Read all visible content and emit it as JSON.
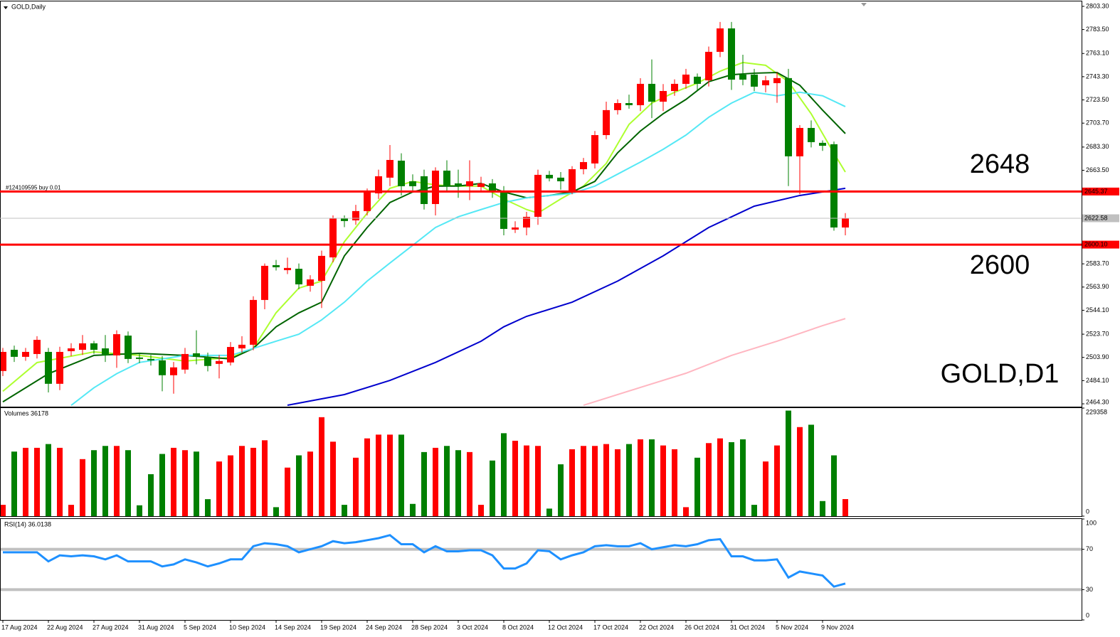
{
  "chart_data": [
    {
      "type": "candlestick",
      "title": "GOLD,Daily",
      "up_color": "#ff0000",
      "down_color": "#008000",
      "open": [
        2492.3,
        2510.4,
        2504.4,
        2506.8,
        2508.6,
        2481.4,
        2509.2,
        2510.4,
        2515.9,
        2511.6,
        2505.6,
        2522.5,
        2503.8,
        2502.6,
        2501.4,
        2488.7,
        2493.5,
        2507.4,
        2504.4,
        2498.4,
        2499.6,
        2511.6,
        2514.7,
        2552.9,
        2582.6,
        2578.3,
        2579.5,
        2565.0,
        2569.2,
        2589.2,
        2622.6,
        2620.8,
        2628.7,
        2643.8,
        2657.2,
        2671.7,
        2654.1,
        2658.4,
        2634.7,
        2663.2,
        2652.3,
        2649.9,
        2649.3,
        2652.3,
        2646.2,
        2612.9,
        2614.7,
        2623.8,
        2659.6,
        2657.2,
        2646.2,
        2664.4,
        2669.3,
        2693.5,
        2714.8,
        2720.8,
        2719.0,
        2737.2,
        2722.0,
        2731.1,
        2737.2,
        2743.3,
        2740.2,
        2764.5,
        2784.5,
        2745.1,
        2745.1,
        2736.0,
        2737.8,
        2742.1,
        2675.4,
        2699.6,
        2686.9,
        2685.7,
        2614.7
      ],
      "high": [
        2512,
        2514,
        2512,
        2522,
        2512,
        2513,
        2516,
        2523,
        2518,
        2523,
        2527,
        2526,
        2507,
        2506,
        2505,
        2500,
        2512,
        2527,
        2508,
        2506,
        2517,
        2522,
        2556,
        2584,
        2587,
        2589,
        2584,
        2574,
        2595,
        2625,
        2625,
        2634,
        2648,
        2664,
        2685,
        2678,
        2660,
        2664,
        2666,
        2672,
        2664,
        2672,
        2658,
        2656,
        2650,
        2620,
        2628,
        2664,
        2663,
        2662,
        2667,
        2674,
        2697,
        2722,
        2724,
        2728,
        2742,
        2758,
        2737,
        2741,
        2750,
        2746,
        2769,
        2790,
        2790,
        2762,
        2750,
        2744,
        2747,
        2750,
        2702,
        2706,
        2689,
        2688,
        2627
      ],
      "low": [
        2488,
        2500,
        2501,
        2503,
        2474,
        2476,
        2505,
        2506,
        2507,
        2500,
        2495,
        2499,
        2499,
        2497,
        2475,
        2473,
        2490,
        2498,
        2492,
        2486,
        2497,
        2508,
        2510,
        2545,
        2578,
        2575,
        2562,
        2560,
        2546,
        2585,
        2615,
        2617,
        2625,
        2639,
        2650,
        2642,
        2646,
        2630,
        2625,
        2645,
        2640,
        2638,
        2645,
        2640,
        2608,
        2610,
        2608,
        2617,
        2654,
        2647,
        2643,
        2660,
        2665,
        2690,
        2711,
        2716,
        2714,
        2708,
        2714,
        2727,
        2733,
        2731,
        2735,
        2760,
        2732,
        2736,
        2731,
        2730,
        2721,
        2650,
        2643,
        2683,
        2680,
        2612,
        2608
      ],
      "close": [
        2508.6,
        2504.4,
        2508.6,
        2518.9,
        2481.4,
        2508.6,
        2511.6,
        2515.9,
        2510.4,
        2505.6,
        2523.7,
        2502.6,
        2502.6,
        2501.4,
        2488.7,
        2495.4,
        2506.8,
        2504.4,
        2496.6,
        2500.8,
        2512.8,
        2514.7,
        2552.9,
        2582.0,
        2580.8,
        2580.2,
        2566.2,
        2570.4,
        2590.5,
        2622.6,
        2620.2,
        2628.7,
        2645.0,
        2658.4,
        2672.3,
        2649.9,
        2649.9,
        2634.7,
        2663.2,
        2649.9,
        2649.9,
        2654.1,
        2652.3,
        2645.0,
        2613.5,
        2614.7,
        2623.8,
        2659.6,
        2656.6,
        2654.1,
        2664.4,
        2670.5,
        2693.5,
        2714.8,
        2720.8,
        2719.0,
        2737.2,
        2722.0,
        2731.1,
        2737.2,
        2745.1,
        2737.2,
        2764.5,
        2784.5,
        2740.8,
        2740.8,
        2734.8,
        2740.2,
        2742.1,
        2675.4,
        2699.6,
        2687.5,
        2684.4,
        2614.7,
        2622.58
      ],
      "series": [
        {
          "color": "#adff2f",
          "x": [
            0,
            3,
            8,
            12,
            16,
            20,
            22,
            24,
            26,
            28,
            30,
            32,
            34,
            36,
            38,
            40,
            42,
            44,
            46,
            47,
            49,
            51,
            53,
            55,
            57,
            59,
            61,
            63,
            65,
            67,
            69,
            71,
            73,
            74
          ],
          "values": [
            2475,
            2499.5,
            2508.6,
            2505.6,
            2500.8,
            2503.8,
            2511.6,
            2542,
            2563,
            2569,
            2602.6,
            2626.9,
            2648.1,
            2654,
            2651,
            2650,
            2650,
            2639,
            2630,
            2627,
            2639,
            2650,
            2669.3,
            2702.6,
            2720.8,
            2730,
            2737.8,
            2748,
            2755.4,
            2753,
            2739,
            2711.7,
            2678,
            2662
          ]
        },
        {
          "color": "#006400",
          "x": [
            0,
            4,
            8,
            12,
            16,
            20,
            22,
            24,
            26,
            28,
            30,
            32,
            34,
            36,
            38,
            40,
            42,
            44,
            46,
            48,
            50,
            52,
            54,
            56,
            58,
            60,
            62,
            64,
            66,
            68,
            70,
            72,
            74
          ],
          "values": [
            2466,
            2490,
            2505.6,
            2507.4,
            2505.6,
            2502.6,
            2511.6,
            2530,
            2541.9,
            2551,
            2590.5,
            2614.7,
            2636,
            2645,
            2650,
            2650,
            2652.3,
            2645,
            2640,
            2642,
            2645,
            2654,
            2678.4,
            2697,
            2711.7,
            2723.9,
            2739,
            2745,
            2746.3,
            2746.9,
            2736,
            2714.8,
            2694.8
          ]
        },
        {
          "color": "#55e8f5",
          "x": [
            6,
            8,
            10,
            12,
            14,
            16,
            20,
            22,
            24,
            26,
            28,
            30,
            32,
            34,
            36,
            38,
            40,
            42,
            44,
            46,
            48,
            50,
            52,
            54,
            56,
            58,
            60,
            62,
            64,
            66,
            68,
            70,
            72,
            74
          ],
          "values": [
            2463,
            2478,
            2490,
            2499.6,
            2502.6,
            2505.6,
            2505.6,
            2511.6,
            2517.7,
            2523.7,
            2535.9,
            2551,
            2569,
            2584.4,
            2599.5,
            2614.7,
            2623.8,
            2630,
            2636,
            2640,
            2642,
            2643.8,
            2650,
            2660.2,
            2670.5,
            2681.4,
            2693.5,
            2708.7,
            2720.8,
            2730,
            2727,
            2730,
            2727,
            2717.8
          ]
        },
        {
          "color": "#0000cd",
          "x": [
            25,
            30,
            34,
            38,
            42,
            44,
            46,
            50,
            54,
            58,
            62,
            66,
            70,
            74
          ],
          "values": [
            2463.1,
            2472.2,
            2484.3,
            2499.6,
            2517.7,
            2530,
            2538.9,
            2551,
            2569,
            2590.5,
            2614.7,
            2632.9,
            2642,
            2648.1
          ]
        },
        {
          "color": "#ffb6c1",
          "x": [
            51,
            56,
            60,
            64,
            68,
            72,
            74
          ],
          "values": [
            2463.1,
            2478.3,
            2490.4,
            2505.6,
            2517.7,
            2531,
            2537
          ]
        }
      ],
      "ylim": [
        2461.9,
        2807.5
      ],
      "yticks": [
        {
          "value": 2803.3,
          "label": "2803.30"
        },
        {
          "value": 2783.5,
          "label": "2783.50"
        },
        {
          "value": 2763.1,
          "label": "2763.10"
        },
        {
          "value": 2743.3,
          "label": "2743.30"
        },
        {
          "value": 2723.5,
          "label": "2723.50"
        },
        {
          "value": 2703.7,
          "label": "2703.70"
        },
        {
          "value": 2683.3,
          "label": "2683.30"
        },
        {
          "value": 2663.5,
          "label": "2663.50"
        },
        {
          "value": 2583.7,
          "label": "2583.70"
        },
        {
          "value": 2563.9,
          "label": "2563.90"
        },
        {
          "value": 2544.1,
          "label": "2544.10"
        },
        {
          "value": 2523.7,
          "label": "2523.70"
        },
        {
          "value": 2503.9,
          "label": "2503.90"
        },
        {
          "value": 2484.1,
          "label": "2484.10"
        },
        {
          "value": 2464.3,
          "label": "2464.30"
        }
      ],
      "levels": [
        {
          "value": 2645.37,
          "label": "2645.37",
          "color": "#ff0000",
          "text_color": "#ffffff",
          "width": 3
        },
        {
          "value": 2622.58,
          "label": "2622.58",
          "color": "#c0c0c0",
          "text_color": "#000000",
          "width": 1
        },
        {
          "value": 2600.1,
          "label": "2600.10",
          "color": "#ff0000",
          "text_color": "#ffffff",
          "width": 3
        }
      ],
      "order_label": "#124109595 buy 0.01",
      "annotations": [
        "2648",
        "2600",
        "GOLD,D1"
      ],
      "xticks": [
        {
          "value": 0,
          "label": "17 Aug 2024"
        },
        {
          "value": 4,
          "label": "22 Aug 2024"
        },
        {
          "value": 8,
          "label": "27 Aug 2024"
        },
        {
          "value": 12,
          "label": "31 Aug 2024"
        },
        {
          "value": 16,
          "label": "5 Sep 2024"
        },
        {
          "value": 20,
          "label": "10 Sep 2024"
        },
        {
          "value": 24,
          "label": "14 Sep 2024"
        },
        {
          "value": 28,
          "label": "19 Sep 2024"
        },
        {
          "value": 32,
          "label": "24 Sep 2024"
        },
        {
          "value": 36,
          "label": "28 Sep 2024"
        },
        {
          "value": 40,
          "label": "3 Oct 2024"
        },
        {
          "value": 44,
          "label": "8 Oct 2024"
        },
        {
          "value": 48,
          "label": "12 Oct 2024"
        },
        {
          "value": 52,
          "label": "17 Oct 2024"
        },
        {
          "value": 56,
          "label": "22 Oct 2024"
        },
        {
          "value": 60,
          "label": "26 Oct 2024"
        },
        {
          "value": 64,
          "label": "31 Oct 2024"
        },
        {
          "value": 68,
          "label": "5 Nov 2024"
        },
        {
          "value": 72,
          "label": "9 Nov 2024"
        }
      ]
    },
    {
      "type": "bar",
      "title": "Volumes 36178",
      "values": [
        24000,
        137000,
        145000,
        145000,
        153000,
        145000,
        24000,
        121000,
        140000,
        149000,
        149000,
        140000,
        23000,
        89000,
        132000,
        145000,
        140000,
        137000,
        36000,
        116000,
        129000,
        149000,
        145000,
        161000,
        19000,
        103000,
        129000,
        137000,
        210000,
        158000,
        24000,
        124000,
        165000,
        173000,
        173000,
        173000,
        26000,
        136000,
        145000,
        149000,
        140000,
        136000,
        24000,
        118000,
        176000,
        160000,
        150000,
        149000,
        16000,
        110000,
        142000,
        149000,
        149000,
        153000,
        142000,
        153000,
        163000,
        163000,
        150000,
        142000,
        19000,
        124000,
        155000,
        165000,
        157000,
        163000,
        24000,
        116000,
        150000,
        224000,
        189000,
        194000,
        32000,
        129000,
        36178
      ],
      "ylim": [
        0,
        229358
      ],
      "yticks": [
        0,
        229358
      ]
    },
    {
      "type": "line",
      "title": "RSI(14) 36.0138",
      "color": "#1e90ff",
      "values": [
        67,
        67,
        67,
        67,
        58,
        64,
        63,
        64,
        63,
        60,
        64,
        58,
        58,
        58,
        53,
        55,
        60,
        57,
        53,
        56,
        60,
        60,
        73,
        76,
        75,
        73,
        67,
        70,
        73,
        78,
        76,
        77,
        79,
        81,
        84,
        75,
        75,
        67,
        73,
        68,
        68,
        69,
        69,
        64,
        51,
        51,
        56,
        69,
        68,
        60,
        64,
        67,
        73,
        74,
        73,
        73,
        76,
        70,
        72,
        74,
        73,
        75,
        79,
        80,
        63,
        63,
        59,
        59,
        60,
        42,
        48,
        46,
        44,
        33,
        36.0138
      ],
      "ylim": [
        0,
        100
      ],
      "yticks": [
        0,
        30,
        70,
        100
      ],
      "levels": [
        30,
        70
      ],
      "level_color": "#c0c0c0"
    }
  ]
}
